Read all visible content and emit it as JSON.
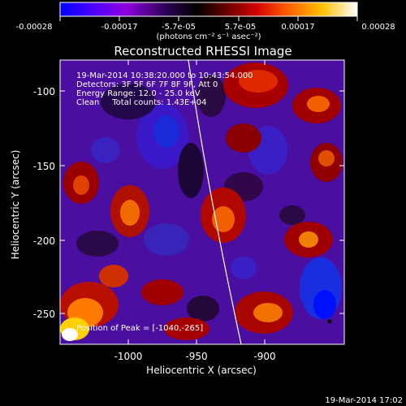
{
  "colorbar": {
    "tick_labels": [
      "-0.00028",
      "-0.00017",
      "-5.7e-05",
      "5.7e-05",
      "0.00017",
      "0.00028"
    ],
    "unit_label": "(photons cm⁻² s⁻¹ asec⁻²)",
    "colors": [
      "#0000ff",
      "#4b00ff",
      "#8d00e0",
      "#2a0050",
      "#000000",
      "#6a0000",
      "#d40000",
      "#ff5a00",
      "#ffc000",
      "#ffffff"
    ]
  },
  "image": {
    "title": "Reconstructed RHESSI Image",
    "info_lines": [
      "19-Mar-2014 10:38:20.000 to 10:43:54.000",
      "Detectors: 3F 5F 6F 7F 8F 9F, Att 0",
      "Energy Range: 12.0 - 25.0 keV",
      "Clean     Total counts: 1.43E+04"
    ],
    "peak_label": "Position of Peak = [-1040,-265]",
    "x_label": "Heliocentric X (arcsec)",
    "y_label": "Heliocentric Y (arcsec)",
    "x_ticks": [
      "-1000",
      "-950",
      "-900"
    ],
    "y_ticks": [
      "-100",
      "-150",
      "-200",
      "-250"
    ],
    "x_range": [
      -1047,
      -890
    ],
    "y_range": [
      -80,
      -270
    ],
    "timestamp": "19-Mar-2014 17:02"
  }
}
